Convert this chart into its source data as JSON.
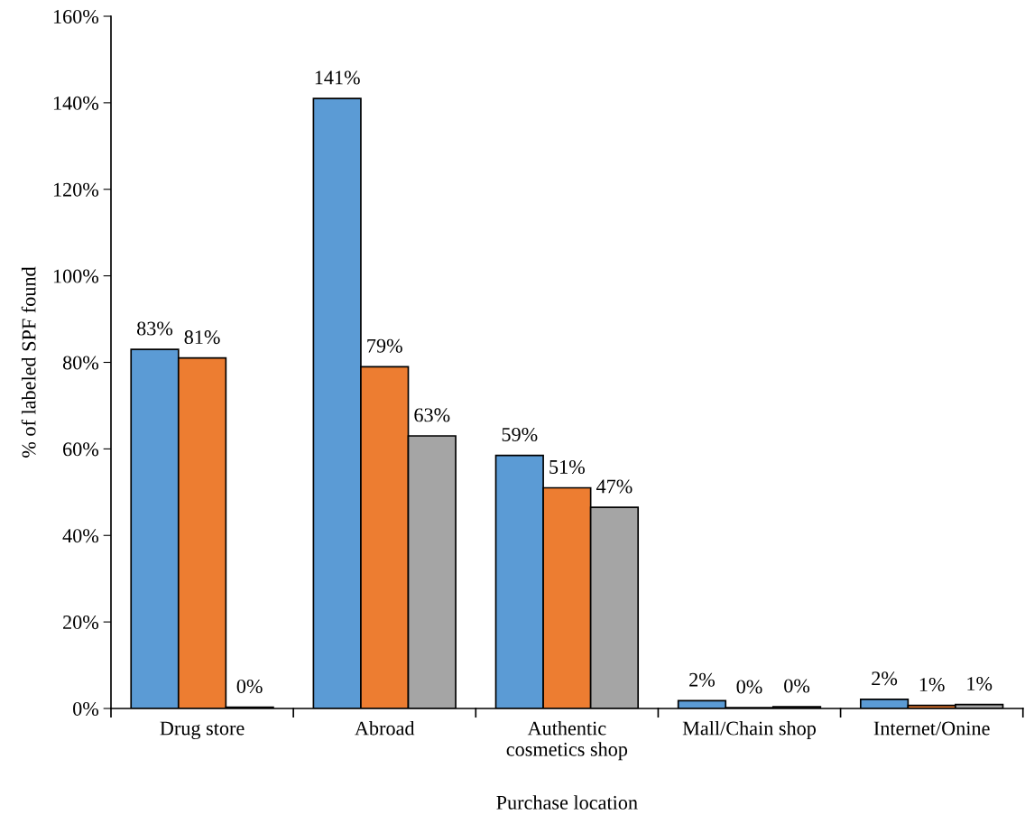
{
  "chart_data": {
    "type": "bar",
    "xlabel": "Purchase location",
    "ylabel": "% of labeled SPF found",
    "categories": [
      "Drug store",
      "Abroad",
      "Authentic cosmetics shop",
      "Mall/Chain shop",
      "Internet/Onine"
    ],
    "series": [
      {
        "color": "#5b9bd5",
        "values": [
          83,
          141,
          58.5,
          1.8,
          2.1
        ],
        "value_labels": [
          "83%",
          "141%",
          "59%",
          "2%",
          "2%"
        ]
      },
      {
        "color": "#ed7d31",
        "values": [
          81,
          79,
          51,
          0.2,
          0.7
        ],
        "value_labels": [
          "81%",
          "79%",
          "51%",
          "0%",
          "1%"
        ]
      },
      {
        "color": "#a5a5a5",
        "values": [
          0.3,
          63,
          46.5,
          0.4,
          0.9
        ],
        "value_labels": [
          "0%",
          "63%",
          "47%",
          "0%",
          "1%"
        ]
      }
    ],
    "ylim": [
      0,
      160
    ],
    "yticks": [
      {
        "value": 0,
        "label": "0%"
      },
      {
        "value": 20,
        "label": "20%"
      },
      {
        "value": 40,
        "label": "40%"
      },
      {
        "value": 60,
        "label": "60%"
      },
      {
        "value": 80,
        "label": "80%"
      },
      {
        "value": 100,
        "label": "100%"
      },
      {
        "value": 120,
        "label": "120%"
      },
      {
        "value": 140,
        "label": "140%"
      },
      {
        "value": 160,
        "label": "160%"
      }
    ],
    "grid": false
  }
}
